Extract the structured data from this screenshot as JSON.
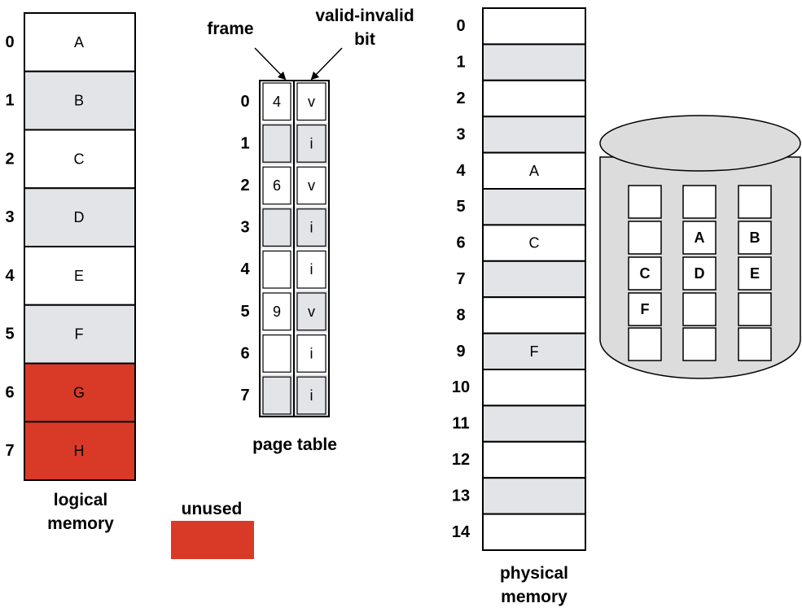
{
  "colors": {
    "white": "#ffffff",
    "gray": "#e3e4e8",
    "unused": "#d93a27",
    "disk": "#dcdcdc",
    "stroke": "#000000"
  },
  "logical_memory": {
    "label_line1": "logical",
    "label_line2": "memory",
    "pages": [
      {
        "index": "0",
        "content": "A",
        "state": "white"
      },
      {
        "index": "1",
        "content": "B",
        "state": "gray"
      },
      {
        "index": "2",
        "content": "C",
        "state": "white"
      },
      {
        "index": "3",
        "content": "D",
        "state": "gray"
      },
      {
        "index": "4",
        "content": "E",
        "state": "white"
      },
      {
        "index": "5",
        "content": "F",
        "state": "gray"
      },
      {
        "index": "6",
        "content": "G",
        "state": "unused"
      },
      {
        "index": "7",
        "content": "H",
        "state": "unused"
      }
    ]
  },
  "legend": {
    "unused_label": "unused"
  },
  "page_table": {
    "title": "page table",
    "frame_label": "frame",
    "valid_label_line1": "valid-invalid",
    "valid_label_line2": "bit",
    "rows": [
      {
        "index": "0",
        "frame": "4",
        "bit": "v"
      },
      {
        "index": "1",
        "frame": "",
        "bit": "i"
      },
      {
        "index": "2",
        "frame": "6",
        "bit": "v"
      },
      {
        "index": "3",
        "frame": "",
        "bit": "i"
      },
      {
        "index": "4",
        "frame": "",
        "bit": "i"
      },
      {
        "index": "5",
        "frame": "9",
        "bit": "v"
      },
      {
        "index": "6",
        "frame": "",
        "bit": "i"
      },
      {
        "index": "7",
        "frame": "",
        "bit": "i"
      }
    ]
  },
  "physical_memory": {
    "label_line1": "physical",
    "label_line2": "memory",
    "frames": [
      {
        "index": "0",
        "content": "",
        "state": "white"
      },
      {
        "index": "1",
        "content": "",
        "state": "gray"
      },
      {
        "index": "2",
        "content": "",
        "state": "white"
      },
      {
        "index": "3",
        "content": "",
        "state": "gray"
      },
      {
        "index": "4",
        "content": "A",
        "state": "white"
      },
      {
        "index": "5",
        "content": "",
        "state": "gray"
      },
      {
        "index": "6",
        "content": "C",
        "state": "white"
      },
      {
        "index": "7",
        "content": "",
        "state": "gray"
      },
      {
        "index": "8",
        "content": "",
        "state": "white"
      },
      {
        "index": "9",
        "content": "F",
        "state": "gray"
      },
      {
        "index": "10",
        "content": "",
        "state": "white"
      },
      {
        "index": "11",
        "content": "",
        "state": "gray"
      },
      {
        "index": "12",
        "content": "",
        "state": "white"
      },
      {
        "index": "13",
        "content": "",
        "state": "gray"
      },
      {
        "index": "14",
        "content": "",
        "state": "white"
      }
    ]
  },
  "backing_store": {
    "icon": "disk-cylinder-icon",
    "grid": [
      [
        "",
        "",
        ""
      ],
      [
        "",
        "A",
        "B"
      ],
      [
        "C",
        "D",
        "E"
      ],
      [
        "F",
        "",
        ""
      ],
      [
        "",
        "",
        ""
      ]
    ]
  }
}
